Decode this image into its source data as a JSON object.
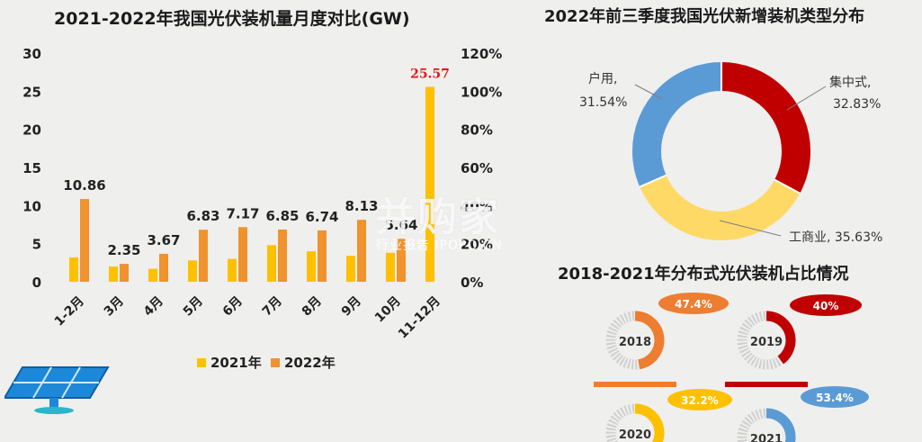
{
  "chart_data": [
    {
      "type": "bar",
      "title": "2021-2022年我国光伏装机量月度对比(GW)",
      "categories": [
        "1-2月",
        "3月",
        "4月",
        "5月",
        "6月",
        "7月",
        "8月",
        "9月",
        "10月",
        "11-12月"
      ],
      "series": [
        {
          "name": "2021年",
          "values": [
            3.2,
            2.0,
            1.7,
            2.8,
            3.0,
            4.8,
            4.0,
            3.4,
            3.8,
            25.57
          ],
          "color": "#ffc000"
        },
        {
          "name": "2022年",
          "values": [
            10.86,
            2.35,
            3.67,
            6.83,
            7.17,
            6.85,
            6.74,
            8.13,
            5.64,
            null
          ],
          "color": "#f0922e"
        }
      ],
      "data_labels": [
        "10.86",
        "2.35",
        "3.67",
        "6.83",
        "7.17",
        "6.85",
        "6.74",
        "8.13",
        "5.64",
        "25.57"
      ],
      "highlight_label_color": "#e3141b",
      "ylim": [
        0,
        30
      ],
      "yticks": [
        "0",
        "5",
        "10",
        "15",
        "20",
        "25",
        "30"
      ],
      "y2lim": [
        0,
        120
      ],
      "y2ticks": [
        "0%",
        "20%",
        "40%",
        "60%",
        "80%",
        "100%",
        "120%"
      ],
      "legend": [
        "2021年",
        "2022年"
      ],
      "legend_position": "bottom"
    },
    {
      "type": "pie",
      "title": "2022年前三季度我国光伏新增装机类型分布",
      "slices": [
        {
          "label": "集中式,",
          "pct_text": "32.83%",
          "value": 32.83,
          "color": "#c00000"
        },
        {
          "label": "工商业,",
          "pct_text": "35.63%",
          "value": 35.63,
          "color": "#ffd966"
        },
        {
          "label": "户用,",
          "pct_text": "31.54%",
          "value": 31.54,
          "color": "#5b9bd5"
        }
      ]
    },
    {
      "type": "pie",
      "title": "2018-2021年分布式光伏装机占比情况",
      "items": [
        {
          "year": "2018",
          "value": 47.4,
          "label": "47.4%",
          "color": "#ed7d31"
        },
        {
          "year": "2019",
          "value": 40,
          "label": "40%",
          "color": "#c00000"
        },
        {
          "year": "2020",
          "value": 32.2,
          "label": "32.2%",
          "color": "#ffc000"
        },
        {
          "year": "2021",
          "value": 53.4,
          "label": "53.4%",
          "color": "#5b9bd5"
        }
      ]
    }
  ],
  "watermark": {
    "main": "并购家",
    "sub": "行业报告 IPOPO.CN"
  },
  "icons": [
    "solar-panel-icon"
  ]
}
